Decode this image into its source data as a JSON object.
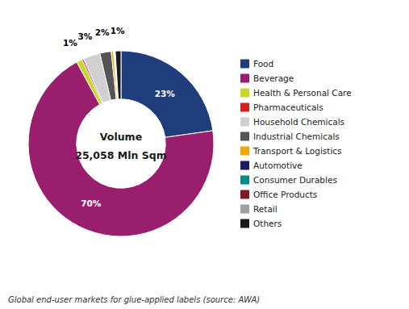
{
  "chart_data": {
    "type": "donut",
    "title": "Volume",
    "subtitle": "25,058 Mln Sqm",
    "annotations": [
      "Global end-user markets for glue-applied labels (source: AWA)"
    ],
    "categories": [
      "Food",
      "Beverage",
      "Health & Personal Care",
      "Pharmaceuticals",
      "Household Chemicals",
      "Industrial Chemicals",
      "Transport & Logistics",
      "Automotive",
      "Consumer Durables",
      "Office Products",
      "Retail",
      "Others"
    ],
    "values": [
      23,
      70,
      1,
      0.3,
      3,
      2,
      0.4,
      0.1,
      0.1,
      0.1,
      0,
      1
    ],
    "value_labels": [
      "23%",
      "70%",
      "1%",
      null,
      "3%",
      "2%",
      null,
      null,
      null,
      null,
      null,
      "1%"
    ],
    "colors": [
      "#1F3D7A",
      "#991F6E",
      "#C8D825",
      "#CC2222",
      "#D0D0D0",
      "#555555",
      "#F0A800",
      "#1A1A5E",
      "#008B8B",
      "#7B1A2A",
      "#A0A0A0",
      "#1A1A1A"
    ],
    "legend": "right",
    "data_labels": true
  }
}
